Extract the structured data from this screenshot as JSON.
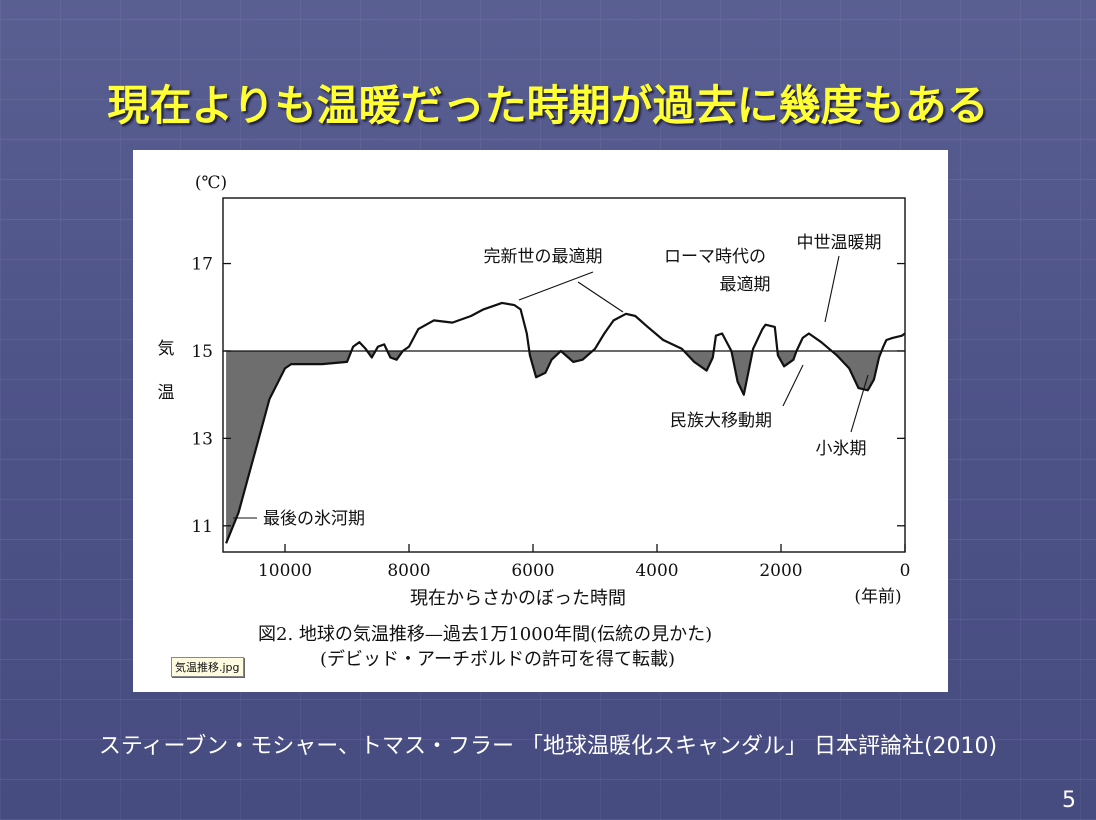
{
  "slide": {
    "title": "現在よりも温暖だった時期が過去に幾度もある",
    "citation": "スティーブン・モシャー、トマス・フラー 「地球温暖化スキャンダル」 日本評論社(2010)",
    "page_number": "5",
    "file_label": "気温推移.jpg",
    "colors": {
      "title": "#ffff33",
      "background": "#4e5388",
      "shade": "#555555"
    }
  },
  "chart_data": {
    "type": "line",
    "unit_label": "(℃)",
    "ylabel": "気温",
    "xlabel": "現在からさかのぼった時間",
    "xlabel_unit": "(年前)",
    "x_reversed": true,
    "xlim": [
      11000,
      0
    ],
    "ylim": [
      10.4,
      18.5
    ],
    "x_ticks": [
      10000,
      8000,
      6000,
      4000,
      2000,
      0
    ],
    "y_ticks": [
      11,
      13,
      15,
      17
    ],
    "reference_line": 15,
    "shade_below_reference": true,
    "series": [
      {
        "x": [
          10950,
          10750,
          10500,
          10250,
          10000,
          9900,
          9700,
          9400,
          9000,
          8900,
          8800,
          8700,
          8600,
          8500,
          8400,
          8300,
          8200,
          8100,
          8000,
          7850,
          7600,
          7300,
          7000,
          6800,
          6500,
          6300,
          6200,
          6100,
          6050,
          5950,
          5800,
          5700,
          5550,
          5350,
          5200,
          5000,
          4850,
          4700,
          4500,
          4350,
          4150,
          3900,
          3600,
          3400,
          3200,
          3100,
          3050,
          2950,
          2800,
          2700,
          2600,
          2450,
          2300,
          2250,
          2100,
          2050,
          1950,
          1800,
          1750,
          1650,
          1550,
          1350,
          1100,
          900,
          750,
          600,
          500,
          420,
          350,
          300,
          200,
          50,
          0
        ],
        "y": [
          10.6,
          11.3,
          12.6,
          13.9,
          14.6,
          14.7,
          14.7,
          14.7,
          14.75,
          15.1,
          15.2,
          15.05,
          14.85,
          15.1,
          15.15,
          14.85,
          14.8,
          15.0,
          15.1,
          15.5,
          15.7,
          15.65,
          15.8,
          15.95,
          16.1,
          16.05,
          15.95,
          15.4,
          14.9,
          14.4,
          14.5,
          14.8,
          15.0,
          14.75,
          14.8,
          15.05,
          15.4,
          15.7,
          15.85,
          15.8,
          15.55,
          15.25,
          15.05,
          14.75,
          14.55,
          14.85,
          15.35,
          15.4,
          15.0,
          14.3,
          14.0,
          15.05,
          15.5,
          15.6,
          15.55,
          14.9,
          14.65,
          14.8,
          15.0,
          15.3,
          15.4,
          15.2,
          14.9,
          14.6,
          14.15,
          14.1,
          14.35,
          14.85,
          15.1,
          15.25,
          15.3,
          15.35,
          15.4
        ]
      }
    ],
    "annotations": [
      {
        "text": "完新世の最適期",
        "x": 6200,
        "y": 16.0
      },
      {
        "text": "ローマ時代の",
        "x": 4300,
        "y": 15.8
      },
      {
        "text": "最適期",
        "x": 4300,
        "y": 15.8
      },
      {
        "text": "中世温暖期",
        "x": 1100,
        "y": 15.4
      },
      {
        "text": "民族大移動期",
        "x": 1950,
        "y": 14.7
      },
      {
        "text": "小氷期",
        "x": 550,
        "y": 14.2
      },
      {
        "text": "最後の氷河期",
        "x": 10900,
        "y": 10.8
      }
    ],
    "caption": [
      "図2. 地球の気温推移—過去1万1000年間(伝統の見かた)",
      "(デビッド・アーチボルドの許可を得て転載)"
    ]
  }
}
